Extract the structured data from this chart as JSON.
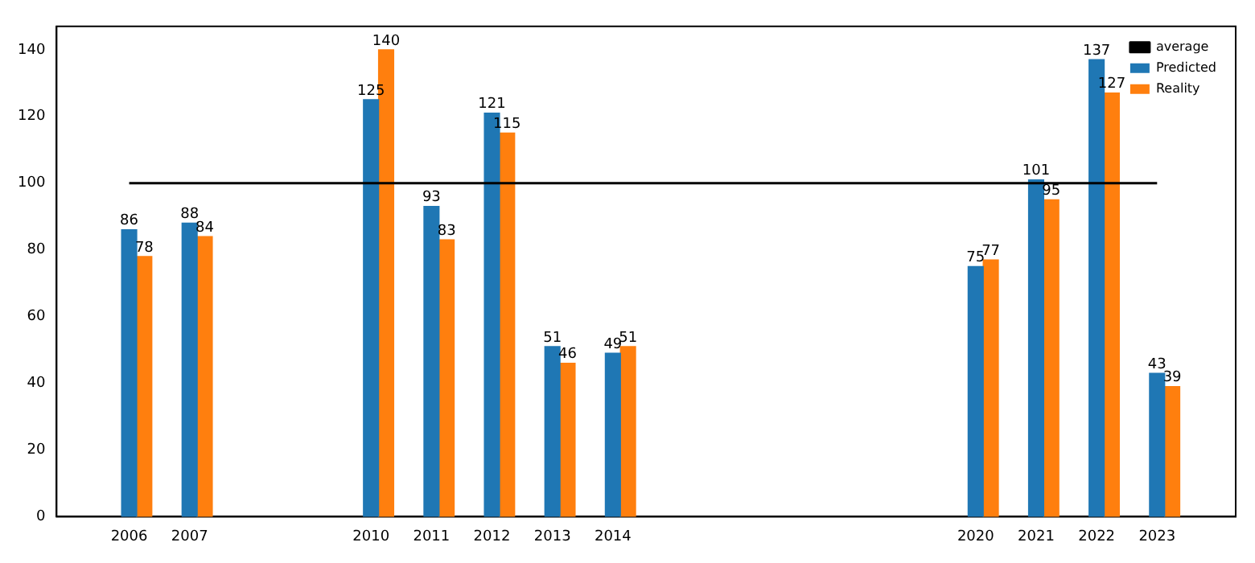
{
  "chart_data": {
    "type": "bar",
    "x": [
      2006,
      2007,
      2010,
      2011,
      2012,
      2013,
      2014,
      2020,
      2021,
      2022,
      2023
    ],
    "series": [
      {
        "name": "average",
        "type": "line",
        "color": "#000000",
        "x": [
          2006,
          2023
        ],
        "values": [
          100,
          100
        ]
      },
      {
        "name": "Predicted",
        "color": "#1f77b4",
        "values": [
          86,
          88,
          125,
          93,
          121,
          51,
          49,
          75,
          101,
          137,
          43
        ],
        "value_labels": [
          "86",
          "88",
          "125",
          "93",
          "121",
          "51",
          "49",
          "75",
          "101",
          "137",
          "43"
        ]
      },
      {
        "name": "Reality",
        "color": "#ff7f0e",
        "x": [
          2006.25,
          2007.25,
          2010.25,
          2011.25,
          2012.25,
          2013.25,
          2014.25,
          2020.25,
          2021.25,
          2022.25,
          2023.25
        ],
        "values": [
          78,
          84,
          140,
          83,
          115,
          46,
          51,
          77,
          95,
          127,
          39
        ],
        "value_labels": [
          "78",
          "84",
          "140",
          "83",
          "115",
          "46",
          "51",
          "77",
          "95",
          "127",
          "39"
        ]
      }
    ],
    "xlim": [
      2004.8,
      2024.3
    ],
    "xticks": [
      2006,
      2007,
      2010,
      2011,
      2012,
      2013,
      2014,
      2020,
      2021,
      2022,
      2023
    ],
    "ylim": [
      0,
      147
    ],
    "yticks": [
      0,
      20,
      40,
      60,
      80,
      100,
      120,
      140
    ],
    "grid": false,
    "legend": "top right",
    "marker": "none"
  }
}
